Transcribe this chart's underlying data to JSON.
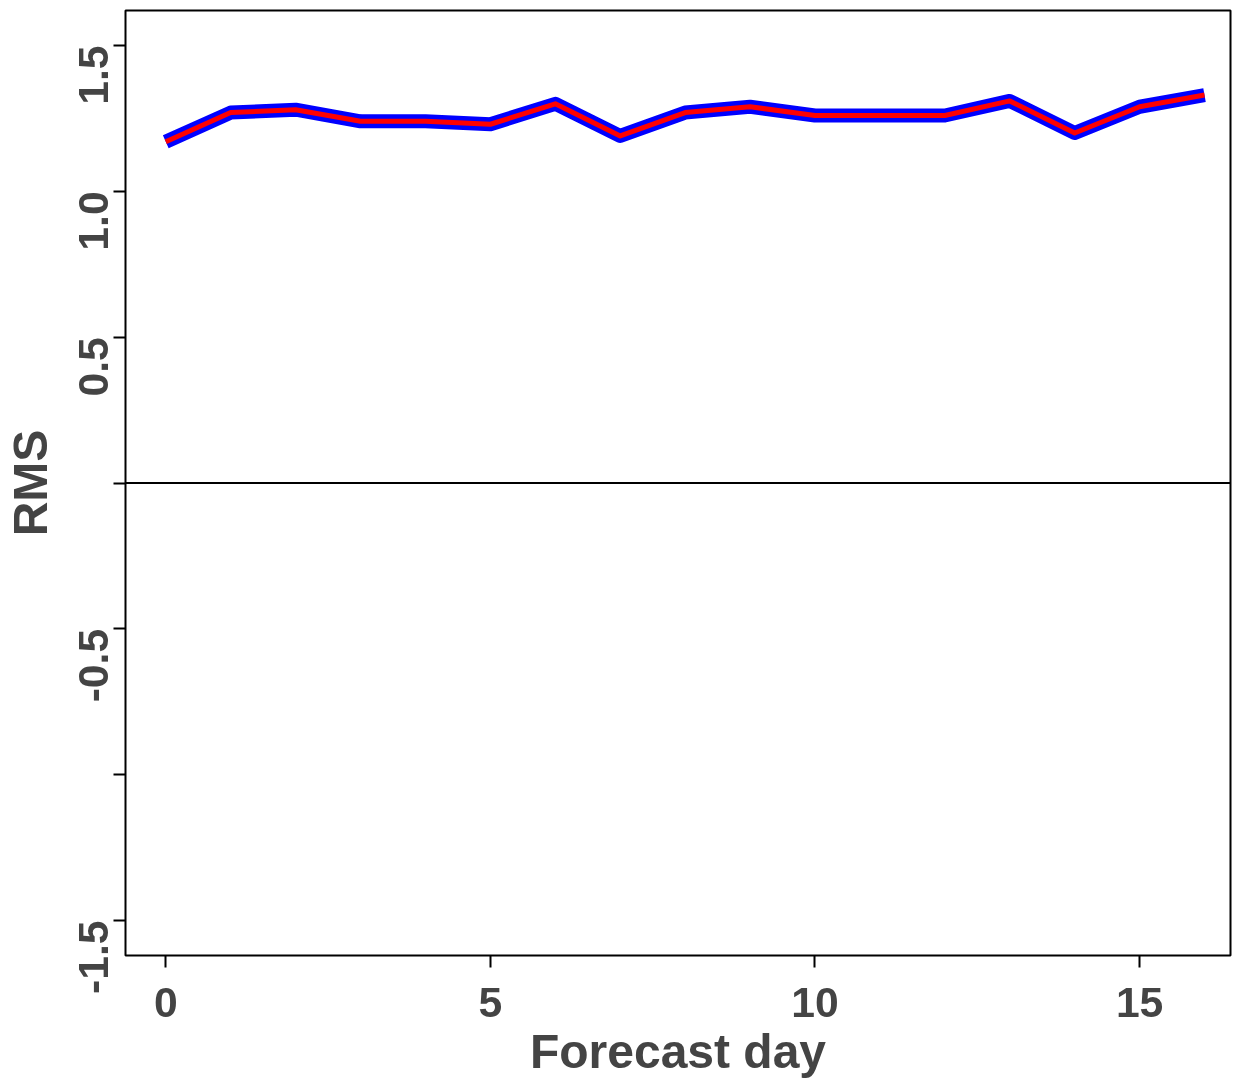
{
  "chart_data": {
    "type": "line",
    "xlabel": "Forecast day",
    "ylabel": "RMS",
    "x": [
      0,
      1,
      2,
      3,
      4,
      5,
      6,
      7,
      8,
      9,
      10,
      11,
      12,
      13,
      14,
      15,
      16
    ],
    "series": [
      {
        "color": "#0000ff",
        "values": [
          1.17,
          1.27,
          1.28,
          1.24,
          1.24,
          1.23,
          1.3,
          1.19,
          1.27,
          1.29,
          1.26,
          1.26,
          1.26,
          1.31,
          1.2,
          1.29,
          1.33
        ]
      },
      {
        "color": "#ff0000",
        "values": [
          1.17,
          1.27,
          1.28,
          1.24,
          1.24,
          1.23,
          1.3,
          1.19,
          1.27,
          1.29,
          1.26,
          1.26,
          1.26,
          1.31,
          1.2,
          1.29,
          1.33
        ]
      }
    ],
    "xlim": [
      -0.62,
      16.4
    ],
    "ylim": [
      -1.62,
      1.62
    ],
    "xticks": [
      0,
      5,
      10,
      15
    ],
    "yticks": [
      -1.5,
      {
        "value": -1.0,
        "label": null
      },
      -0.5,
      {
        "value": 0,
        "label": null
      },
      0.5,
      {
        "value": 1.0,
        "label": "1.0"
      },
      1.5
    ],
    "ref_lines": [
      {
        "axis": "y",
        "value": 0,
        "color": "#000000"
      }
    ],
    "grid": false,
    "marker": "none",
    "line_style": "solid"
  }
}
